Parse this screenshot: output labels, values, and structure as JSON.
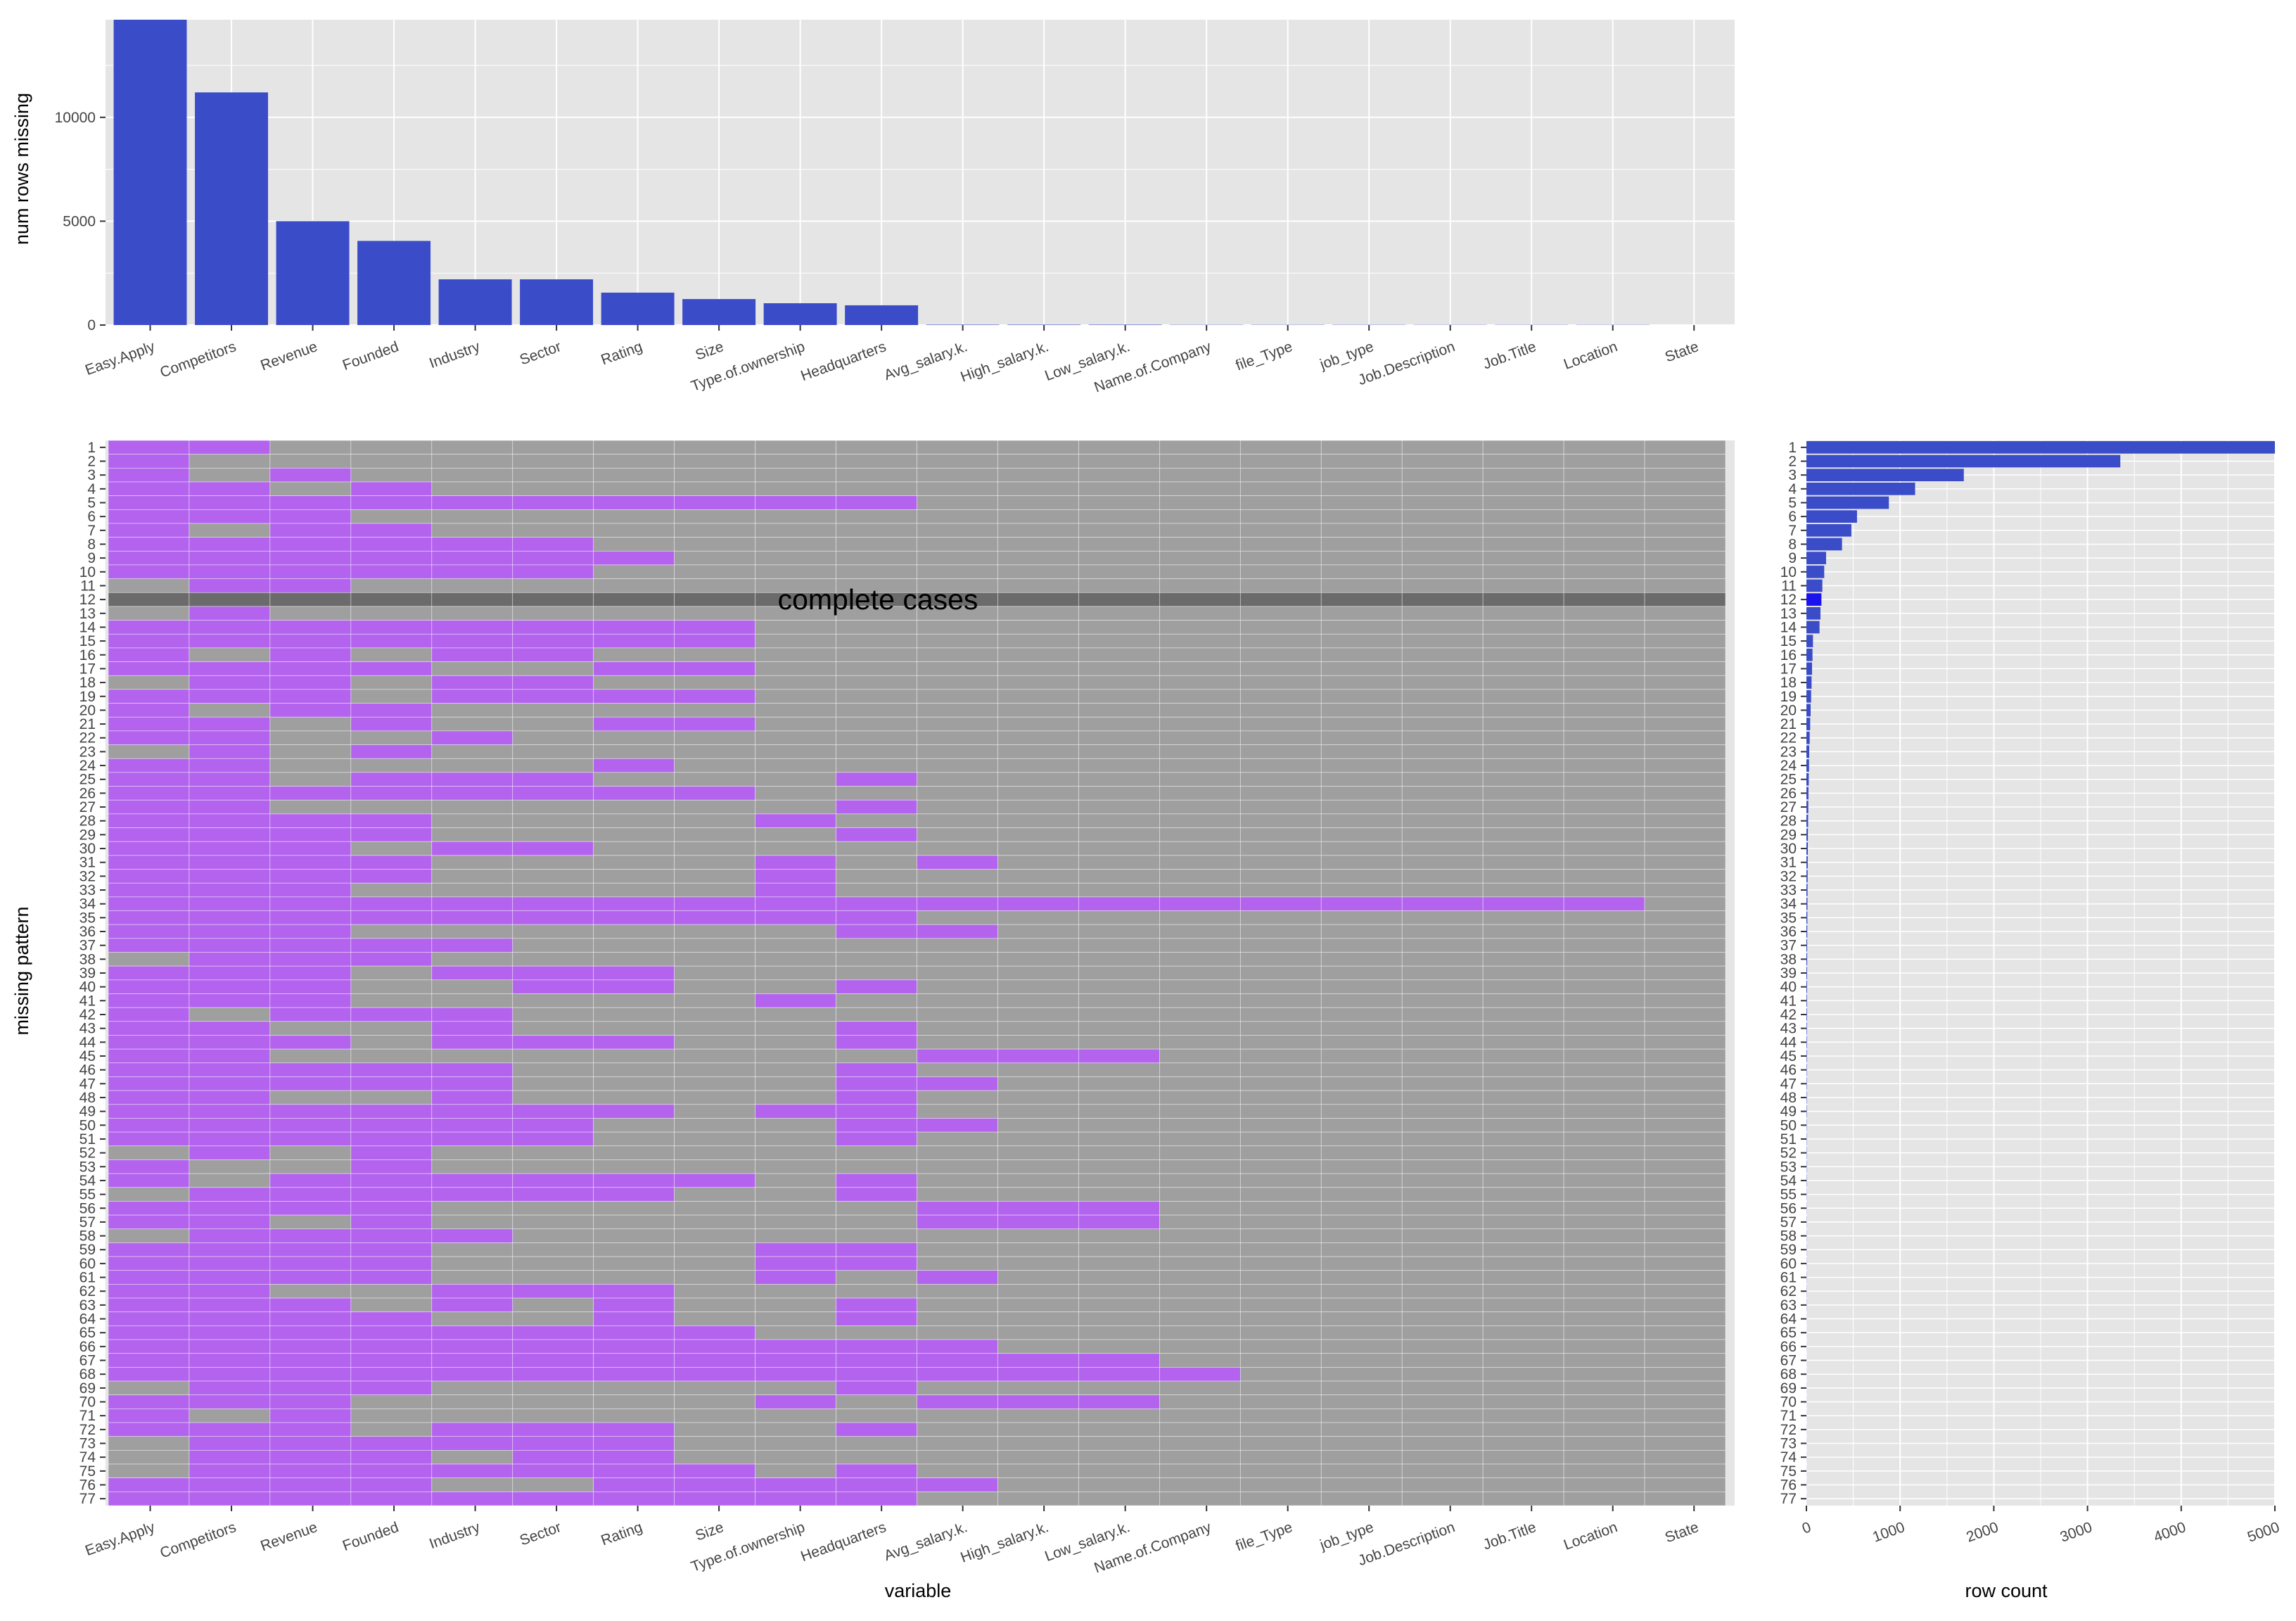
{
  "colors": {
    "bar": "#3b4cc9",
    "complete_bar": "#1a13f0",
    "missing": "#b363ee",
    "present": "#9f9f9f",
    "complete_row": "#6b6b6b",
    "panel_bg": "#e5e5e5",
    "grid": "#ffffff",
    "text": "#444444",
    "title_text": "#000000"
  },
  "chart_data": [
    {
      "id": "missing-per-variable",
      "type": "bar",
      "ylabel": "num rows missing",
      "ylim": [
        0,
        14700
      ],
      "yticks": [
        0,
        5000,
        10000
      ],
      "categories": [
        "Easy.Apply",
        "Competitors",
        "Revenue",
        "Founded",
        "Industry",
        "Sector",
        "Rating",
        "Size",
        "Type.of.ownership",
        "Headquarters",
        "Avg_salary.k.",
        "High_salary.k.",
        "Low_salary.k.",
        "Name.of.Company",
        "file_Type",
        "job_type",
        "Job.Description",
        "Job.Title",
        "Location",
        "State"
      ],
      "values": [
        14700,
        11200,
        5000,
        4050,
        2200,
        2200,
        1560,
        1250,
        1050,
        950,
        20,
        20,
        20,
        12,
        12,
        12,
        10,
        10,
        10,
        0
      ]
    },
    {
      "id": "missing-pattern-matrix",
      "type": "heatmap",
      "xlabel": "variable",
      "ylabel": "missing pattern",
      "annotation": "complete cases",
      "complete_case_pattern": 12,
      "variables": [
        "Easy.Apply",
        "Competitors",
        "Revenue",
        "Founded",
        "Industry",
        "Sector",
        "Rating",
        "Size",
        "Type.of.ownership",
        "Headquarters",
        "Avg_salary.k.",
        "High_salary.k.",
        "Low_salary.k.",
        "Name.of.Company",
        "file_Type",
        "job_type",
        "Job.Description",
        "Job.Title",
        "Location",
        "State"
      ],
      "patterns": [
        "11000000000000000000",
        "10000000000000000000",
        "10100000000000000000",
        "11010000000000000000",
        "11111111110000000000",
        "11100000000000000000",
        "10110000000000000000",
        "11111100000000000000",
        "11111110000000000000",
        "11111100000000000000",
        "01100000000000000000",
        "00000000000000000000",
        "01000000000000000000",
        "11111111000000000000",
        "11111111000000000000",
        "10101100000000000000",
        "11110011000000000000",
        "01101100000000000000",
        "11101111000000000000",
        "10110000000000000000",
        "11010011000000000000",
        "11001000000000000000",
        "01010000000000000000",
        "11000010000000000000",
        "11011100010000000000",
        "11111111000000000000",
        "11000000010000000000",
        "11110000100000000000",
        "11110000010000000000",
        "11101100000000000000",
        "11110000101000000000",
        "11110000100000000000",
        "11100000100000000000",
        "11111111111111111110",
        "11111111110000000000",
        "11100000011000000000",
        "11111000000000000000",
        "01110000000000000000",
        "11101110000000000000",
        "11100110010000000000",
        "11100000100000000000",
        "10111000000000000000",
        "11001000010000000000",
        "11101110010000000000",
        "11000000001110000000",
        "11111000010000000000",
        "11111000011000000000",
        "11001000010000000000",
        "11111110110000000000",
        "11111100011000000000",
        "11111100010000000000",
        "01010000000000000000",
        "10010000000000000000",
        "10111111010000000000",
        "01111110010000000000",
        "11110000001110000000",
        "11010000001110000000",
        "01111000000000000000",
        "11110000110000000000",
        "11110000110000000000",
        "11110000101000000000",
        "11001110000000000000",
        "11101010010000000000",
        "11110010010000000000",
        "11111111000000000000",
        "11111111111000000000",
        "11111111111110000000",
        "11111111111111000000",
        "01110000010000000000",
        "11100000101110000000",
        "10100000000000000000",
        "11101110010000000000",
        "01111110000000000000",
        "01110110000000000000",
        "01111111010000000000",
        "11110011111000000000",
        "11111111110000000000"
      ]
    },
    {
      "id": "pattern-row-counts",
      "type": "bar",
      "orientation": "horizontal",
      "xlabel": "row count",
      "xlim": [
        0,
        5000
      ],
      "xticks": [
        0,
        1000,
        2000,
        3000,
        4000,
        5000
      ],
      "values": [
        5000,
        3350,
        1680,
        1160,
        880,
        540,
        480,
        380,
        210,
        190,
        170,
        160,
        150,
        140,
        70,
        65,
        60,
        55,
        50,
        45,
        40,
        35,
        30,
        28,
        25,
        22,
        20,
        18,
        16,
        15,
        14,
        13,
        12,
        11,
        10,
        9,
        8,
        8,
        7,
        7,
        6,
        6,
        5,
        5,
        5,
        4,
        4,
        4,
        4,
        3,
        3,
        3,
        3,
        3,
        2,
        2,
        2,
        2,
        2,
        2,
        2,
        2,
        2,
        1,
        1,
        1,
        1,
        1,
        1,
        1,
        1,
        1,
        1,
        1,
        1,
        1,
        1
      ]
    }
  ]
}
